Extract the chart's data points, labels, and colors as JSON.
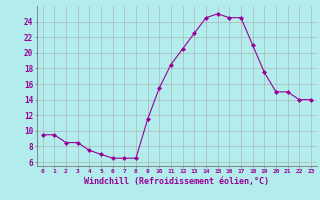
{
  "x": [
    0,
    1,
    2,
    3,
    4,
    5,
    6,
    7,
    8,
    9,
    10,
    11,
    12,
    13,
    14,
    15,
    16,
    17,
    18,
    19,
    20,
    21,
    22,
    23
  ],
  "y": [
    9.5,
    9.5,
    8.5,
    8.5,
    7.5,
    7.0,
    6.5,
    6.5,
    6.5,
    11.5,
    15.5,
    18.5,
    20.5,
    22.5,
    24.5,
    25.0,
    24.5,
    24.5,
    21.0,
    17.5,
    15.0,
    15.0,
    14.0,
    14.0
  ],
  "line_color": "#990099",
  "marker": "D",
  "marker_size": 2.0,
  "bg_color": "#b3ecec",
  "grid_color": "#aaaaaa",
  "xlabel": "Windchill (Refroidissement éolien,°C)",
  "xlabel_color": "#990099",
  "tick_color": "#990099",
  "yticks": [
    6,
    8,
    10,
    12,
    14,
    16,
    18,
    20,
    22,
    24
  ],
  "ylim": [
    5.5,
    26.0
  ],
  "xlim": [
    -0.5,
    23.5
  ]
}
